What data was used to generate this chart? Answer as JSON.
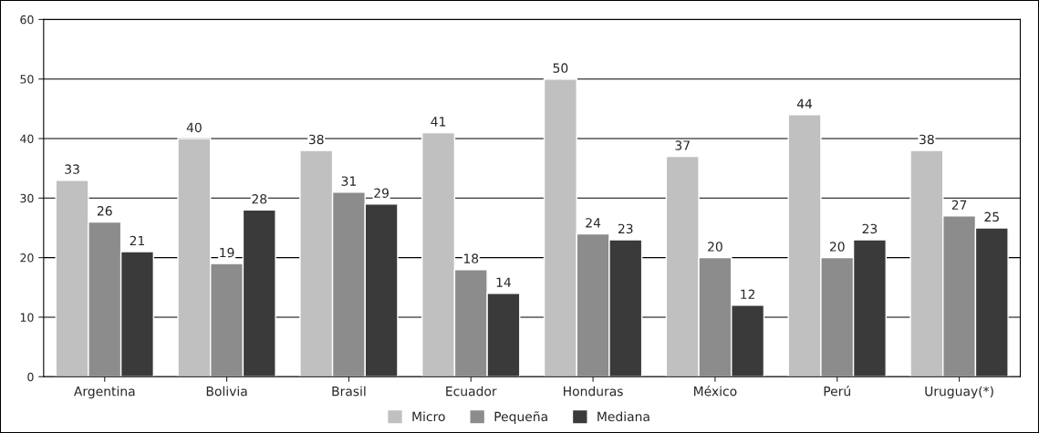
{
  "chart_data": {
    "type": "bar",
    "categories": [
      "Argentina",
      "Bolivia",
      "Brasil",
      "Ecuador",
      "Honduras",
      "México",
      "Perú",
      "Uruguay(*)"
    ],
    "series": [
      {
        "name": "Micro",
        "color": "#c0c0c0",
        "values": [
          33,
          40,
          38,
          41,
          50,
          37,
          44,
          38
        ]
      },
      {
        "name": "Pequeña",
        "color": "#8c8c8c",
        "values": [
          26,
          19,
          31,
          18,
          24,
          20,
          20,
          27
        ]
      },
      {
        "name": "Mediana",
        "color": "#3a3a3a",
        "values": [
          21,
          28,
          29,
          14,
          23,
          12,
          23,
          25
        ]
      }
    ],
    "ylim": [
      0,
      60
    ],
    "yticks": [
      0,
      10,
      20,
      30,
      40,
      50,
      60
    ],
    "grid": "y",
    "legend": "bottom",
    "data_labels": true
  }
}
